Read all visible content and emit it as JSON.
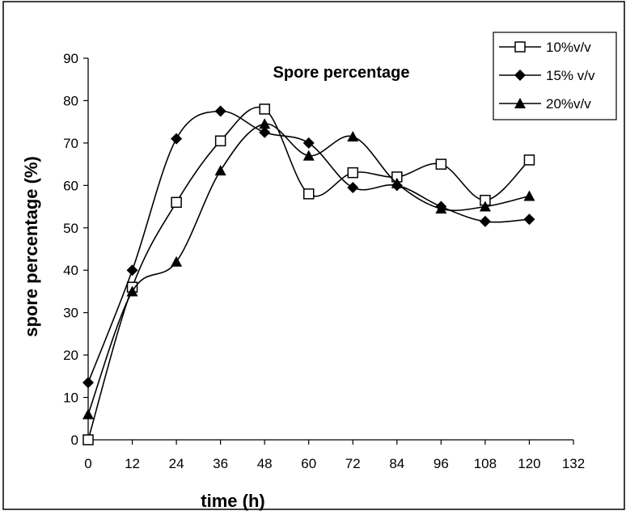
{
  "chart_data": {
    "type": "line",
    "title": "Spore percentage",
    "xlabel": "time (h)",
    "ylabel": "spore percentage (%)",
    "xlim": [
      0,
      132
    ],
    "ylim": [
      0,
      90
    ],
    "x_ticks": [
      0,
      12,
      24,
      36,
      48,
      60,
      72,
      84,
      96,
      108,
      120,
      132
    ],
    "y_ticks": [
      0,
      10,
      20,
      30,
      40,
      50,
      60,
      70,
      80,
      90
    ],
    "grid": false,
    "legend_position": "top-right",
    "x": [
      0,
      12,
      24,
      36,
      48,
      60,
      72,
      84,
      96,
      108,
      120
    ],
    "series": [
      {
        "name": "10%v/v",
        "marker": "open-square",
        "color": "#000000",
        "values": [
          0,
          36,
          56,
          70.5,
          78,
          58,
          63,
          62,
          65,
          56.5,
          66
        ]
      },
      {
        "name": "15% v/v",
        "marker": "filled-diamond",
        "color": "#000000",
        "values": [
          13.5,
          40,
          71,
          77.5,
          72.5,
          70,
          59.5,
          60,
          55,
          51.5,
          52
        ]
      },
      {
        "name": "20%v/v",
        "marker": "filled-triangle",
        "color": "#000000",
        "values": [
          6,
          35,
          42,
          63.5,
          74.5,
          67,
          71.5,
          60.5,
          54.5,
          55,
          57.5
        ]
      }
    ]
  }
}
